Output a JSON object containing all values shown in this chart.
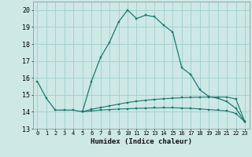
{
  "xlabel": "Humidex (Indice chaleur)",
  "bg_color": "#cde8e5",
  "grid_color": "#9ecfcc",
  "line_color": "#1a7870",
  "x_values": [
    0,
    1,
    2,
    3,
    4,
    5,
    6,
    7,
    8,
    9,
    10,
    11,
    12,
    13,
    14,
    15,
    16,
    17,
    18,
    19,
    20,
    21,
    22,
    23
  ],
  "line1_y": [
    15.8,
    14.8,
    14.1,
    14.1,
    14.1,
    14.0,
    15.8,
    17.2,
    18.1,
    19.3,
    20.0,
    19.5,
    19.7,
    19.6,
    19.1,
    18.7,
    16.6,
    16.2,
    15.3,
    14.9,
    14.8,
    14.6,
    14.2,
    13.4
  ],
  "line2_y": [
    null,
    null,
    null,
    null,
    null,
    14.0,
    14.15,
    14.25,
    14.35,
    14.45,
    14.55,
    14.62,
    14.68,
    14.73,
    14.77,
    14.8,
    14.83,
    14.85,
    14.86,
    14.87,
    14.87,
    14.87,
    14.75,
    13.4
  ],
  "line3_y": [
    null,
    null,
    null,
    null,
    null,
    14.0,
    14.05,
    14.1,
    14.13,
    14.16,
    14.18,
    14.2,
    14.22,
    14.23,
    14.24,
    14.24,
    14.22,
    14.2,
    14.17,
    14.13,
    14.09,
    14.05,
    13.9,
    13.4
  ],
  "ylim": [
    13,
    20.5
  ],
  "xlim": [
    -0.5,
    23.5
  ],
  "yticks": [
    13,
    14,
    15,
    16,
    17,
    18,
    19,
    20
  ],
  "xtick_labels": [
    "0",
    "1",
    "2",
    "3",
    "4",
    "5",
    "6",
    "7",
    "8",
    "9",
    "10",
    "11",
    "12",
    "13",
    "14",
    "15",
    "16",
    "17",
    "18",
    "19",
    "20",
    "21",
    "22",
    "23"
  ]
}
